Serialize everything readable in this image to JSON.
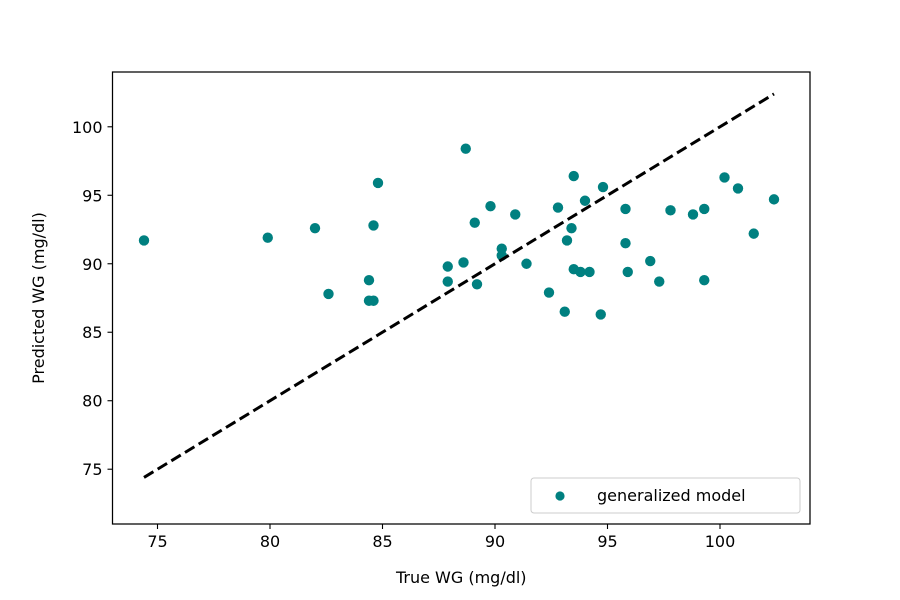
{
  "chart_data": {
    "type": "scatter",
    "xlabel": "True WG (mg/dl)",
    "ylabel": "Predicted WG (mg/dl)",
    "xlim": [
      73,
      104
    ],
    "ylim": [
      71,
      104
    ],
    "xticks": [
      75,
      80,
      85,
      90,
      95,
      100
    ],
    "yticks": [
      75,
      80,
      85,
      90,
      95,
      100
    ],
    "legend_position": "lower right",
    "grid": false,
    "series": [
      {
        "name": "generalized model",
        "kind": "points",
        "color": "#008080",
        "points": [
          [
            74.4,
            91.7
          ],
          [
            79.9,
            91.9
          ],
          [
            82.0,
            92.6
          ],
          [
            82.6,
            87.8
          ],
          [
            84.4,
            88.8
          ],
          [
            84.4,
            87.3
          ],
          [
            84.6,
            87.3
          ],
          [
            84.6,
            92.8
          ],
          [
            84.8,
            95.9
          ],
          [
            87.9,
            89.8
          ],
          [
            87.9,
            88.7
          ],
          [
            88.6,
            90.1
          ],
          [
            88.7,
            98.4
          ],
          [
            89.1,
            93.0
          ],
          [
            89.2,
            88.5
          ],
          [
            89.8,
            94.2
          ],
          [
            90.3,
            91.1
          ],
          [
            90.3,
            90.6
          ],
          [
            90.9,
            93.6
          ],
          [
            91.4,
            90.0
          ],
          [
            92.4,
            87.9
          ],
          [
            92.8,
            94.1
          ],
          [
            93.1,
            86.5
          ],
          [
            93.2,
            91.7
          ],
          [
            93.4,
            92.6
          ],
          [
            93.5,
            96.4
          ],
          [
            93.5,
            89.6
          ],
          [
            93.8,
            89.4
          ],
          [
            94.0,
            94.6
          ],
          [
            94.2,
            89.4
          ],
          [
            94.7,
            86.3
          ],
          [
            94.8,
            95.6
          ],
          [
            95.8,
            94.0
          ],
          [
            95.8,
            91.5
          ],
          [
            95.9,
            89.4
          ],
          [
            96.9,
            90.2
          ],
          [
            97.3,
            88.7
          ],
          [
            97.8,
            93.9
          ],
          [
            98.8,
            93.6
          ],
          [
            99.3,
            94.0
          ],
          [
            99.3,
            88.8
          ],
          [
            100.2,
            96.3
          ],
          [
            100.8,
            95.5
          ],
          [
            101.5,
            92.2
          ],
          [
            102.4,
            94.7
          ]
        ]
      },
      {
        "kind": "reference-line",
        "color": "#000000",
        "points": [
          [
            74.4,
            74.4
          ],
          [
            102.4,
            102.4
          ]
        ]
      }
    ]
  }
}
